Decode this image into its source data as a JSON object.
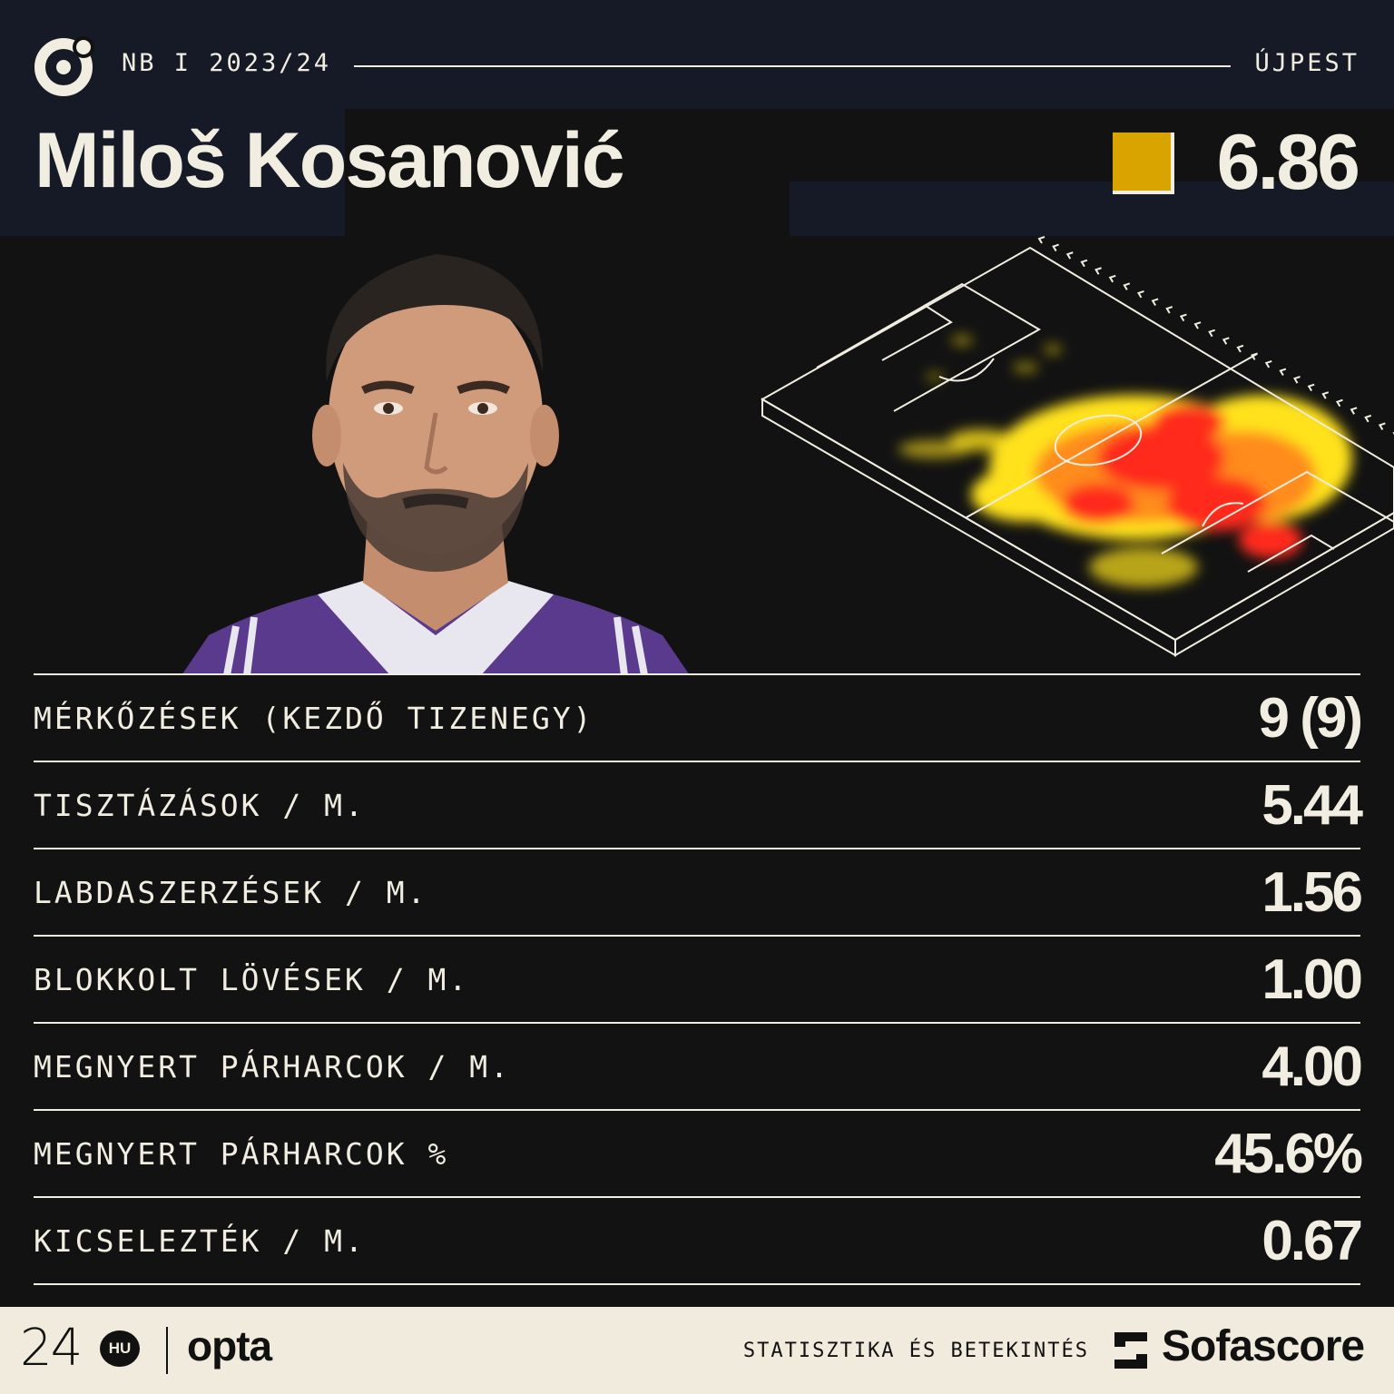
{
  "header": {
    "season": "NB I 2023/24",
    "team": "ÚJPEST",
    "player_name": "Miloš Kosanović",
    "rating": "6.86",
    "rating_color": "#d9a400"
  },
  "stats": [
    {
      "label": "MÉRKŐZÉSEK (KEZDŐ TIZENEGY)",
      "value": "9 (9)"
    },
    {
      "label": "TISZTÁZÁSOK / M.",
      "value": "5.44"
    },
    {
      "label": "LABDASZERZÉSEK / M.",
      "value": "1.56"
    },
    {
      "label": "BLOKKOLT LÖVÉSEK / M.",
      "value": "1.00"
    },
    {
      "label": "MEGNYERT PÁRHARCOK / M.",
      "value": "4.00"
    },
    {
      "label": "MEGNYERT PÁRHARCOK %",
      "value": "45.6%"
    },
    {
      "label": "KICSELEZTÉK / M.",
      "value": "0.67"
    }
  ],
  "footer": {
    "brand_24": "24",
    "brand_hu": "HU",
    "brand_opta": "opta",
    "caption": "STATISZTIKA ÉS BETEKINTÉS",
    "brand_sofascore": "Sofascore"
  },
  "colors": {
    "background": "#121212",
    "cream": "#f1ede0",
    "heat_red": "#ff2a1a",
    "heat_orange": "#ff8c1a",
    "heat_yellow": "#ffe21a"
  }
}
